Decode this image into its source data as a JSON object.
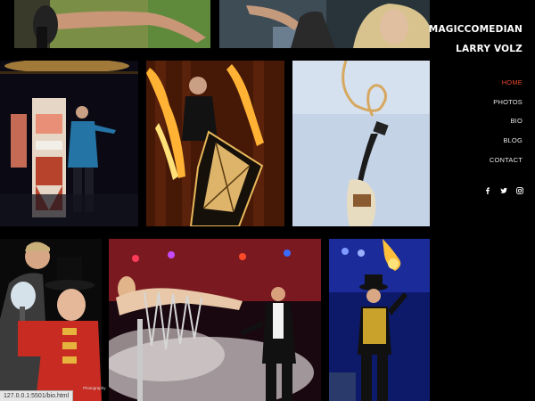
{
  "site": {
    "title_line1": "MAGICCOMEDIAN",
    "title_line2": "LARRY VOLZ"
  },
  "nav": {
    "items": [
      {
        "label": "HOME",
        "active": true
      },
      {
        "label": "PHOTOS",
        "active": false
      },
      {
        "label": "BIO",
        "active": false
      },
      {
        "label": "BLOG",
        "active": false
      },
      {
        "label": "CONTACT",
        "active": false
      }
    ]
  },
  "social": [
    "facebook-icon",
    "twitter-icon",
    "instagram-icon"
  ],
  "colors": {
    "accent": "#e2472c",
    "background": "#000000",
    "nav_text": "#e6e6e6"
  },
  "photos": [
    {
      "name": "photo-hand-trick"
    },
    {
      "name": "photo-blonde-assistant"
    },
    {
      "name": "photo-stage-illusion-box"
    },
    {
      "name": "photo-fire-cabinet"
    },
    {
      "name": "photo-straitjacket-escape"
    },
    {
      "name": "photo-tophat-kid"
    },
    {
      "name": "photo-levitation-smoke"
    },
    {
      "name": "photo-fire-juggling"
    }
  ],
  "photo_credit": "Photography",
  "status_url": "127.0.0.1:5501/bio.html"
}
